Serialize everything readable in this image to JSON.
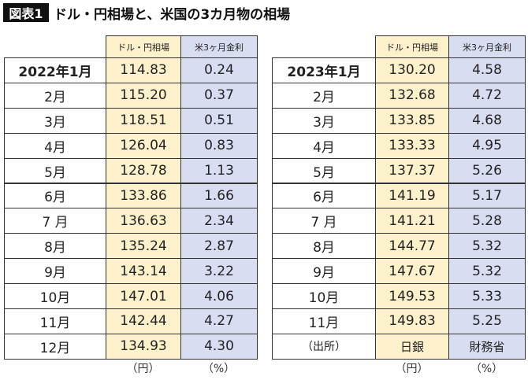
{
  "header": {
    "label": "図表1",
    "title": "ドル・円相場と、米国の3カ月物の相場"
  },
  "tables": [
    {
      "columns": [
        "ドル・円相場",
        "米3ヶ月金利"
      ],
      "rows": [
        [
          "2022年1月",
          "114.83",
          "0.24"
        ],
        [
          "2月",
          "115.20",
          "0.37"
        ],
        [
          "3月",
          "118.51",
          "0.51"
        ],
        [
          "4月",
          "126.04",
          "0.83"
        ],
        [
          "5月",
          "128.78",
          "1.13"
        ],
        [
          "6月",
          "133.86",
          "1.66"
        ],
        [
          "7 月",
          "136.63",
          "2.34"
        ],
        [
          "8月",
          "135.24",
          "2.87"
        ],
        [
          "9月",
          "143.14",
          "3.22"
        ],
        [
          "10月",
          "147.01",
          "4.06"
        ],
        [
          "11月",
          "142.44",
          "4.27"
        ],
        [
          "12月",
          "134.93",
          "4.30"
        ]
      ],
      "units": [
        "（円）",
        "（%）"
      ]
    },
    {
      "columns": [
        "ドル・円相場",
        "米3ヶ月金利"
      ],
      "rows": [
        [
          "2023年1月",
          "130.20",
          "4.58"
        ],
        [
          "2月",
          "132.68",
          "4.72"
        ],
        [
          "3月",
          "133.85",
          "4.68"
        ],
        [
          "4月",
          "133.33",
          "4.95"
        ],
        [
          "5月",
          "137.37",
          "5.26"
        ],
        [
          "6月",
          "141.19",
          "5.17"
        ],
        [
          "7 月",
          "141.21",
          "5.28"
        ],
        [
          "8月",
          "144.77",
          "5.32"
        ],
        [
          "9月",
          "147.67",
          "5.32"
        ],
        [
          "10月",
          "149.53",
          "5.33"
        ],
        [
          "11月",
          "149.83",
          "5.25"
        ],
        [
          "（出所）",
          "日銀",
          "財務省"
        ]
      ],
      "units": [
        "（円）",
        "（%）"
      ]
    }
  ]
}
